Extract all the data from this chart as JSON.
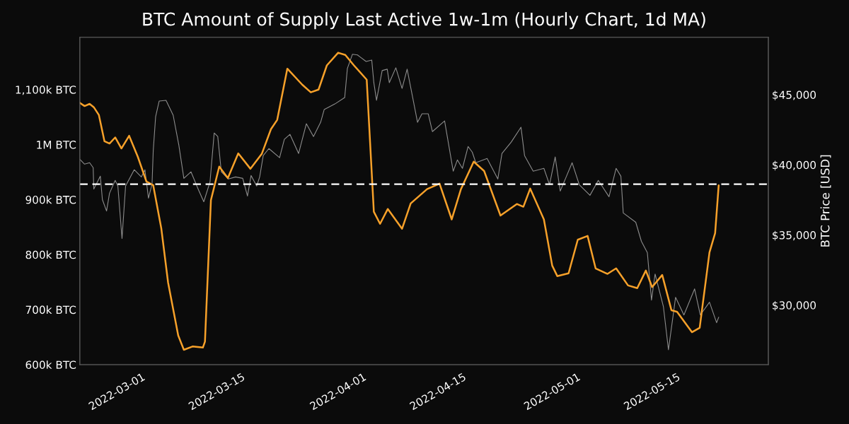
{
  "chart_data": {
    "type": "line",
    "title": "BTC Amount of Supply Last Active 1w-1m (Hourly Chart, 1d MA)",
    "y2label": "BTC Price [USD]",
    "xlim": [
      "2022-02-19T14:00",
      "2022-05-27T02:00"
    ],
    "xticks": [
      "2022-03-01",
      "2022-03-15",
      "2022-04-01",
      "2022-04-15",
      "2022-05-01",
      "2022-05-15"
    ],
    "ylim": [
      600000,
      1195000
    ],
    "yticks": [
      {
        "value": 600000,
        "label": "600k BTC"
      },
      {
        "value": 700000,
        "label": "700k BTC"
      },
      {
        "value": 800000,
        "label": "800k BTC"
      },
      {
        "value": 900000,
        "label": "900k BTC"
      },
      {
        "value": 1000000,
        "label": "1M BTC"
      },
      {
        "value": 1100000,
        "label": "1,100k BTC"
      }
    ],
    "y2lim": [
      25760,
      49090
    ],
    "y2ticks": [
      {
        "value": 30000,
        "label": "$30,000"
      },
      {
        "value": 35000,
        "label": "$35,000"
      },
      {
        "value": 40000,
        "label": "$40,000"
      },
      {
        "value": 45000,
        "label": "$45,000"
      }
    ],
    "grid": false,
    "legend": false,
    "series": [
      {
        "axis": "y2",
        "color": "#8c8c8c",
        "x": [
          "2022-02-19T14:00",
          "2022-02-20T06:00",
          "2022-02-20T23:00",
          "2022-02-21T11:00",
          "2022-02-21T13:00",
          "2022-02-22T11:00",
          "2022-02-22T18:00",
          "2022-02-23T08:00",
          "2022-02-23T18:00",
          "2022-02-24T13:00",
          "2022-02-24T22:00",
          "2022-02-25T12:00",
          "2022-02-26T00:00",
          "2022-02-27T05:00",
          "2022-02-28T05:00",
          "2022-02-28T17:00",
          "2022-03-01T05:00",
          "2022-03-01T17:00",
          "2022-03-01T21:00",
          "2022-03-02T05:00",
          "2022-03-02T17:00",
          "2022-03-03T16:00",
          "2022-03-04T16:00",
          "2022-03-05T11:00",
          "2022-03-06T04:00",
          "2022-03-07T04:00",
          "2022-03-08T04:00",
          "2022-03-08T23:00",
          "2022-03-09T20:00",
          "2022-03-10T10:00",
          "2022-03-10T22:00",
          "2022-03-11T10:00",
          "2022-03-12T10:00",
          "2022-03-13T10:00",
          "2022-03-14T10:00",
          "2022-03-15T02:00",
          "2022-03-15T14:00",
          "2022-03-16T09:00",
          "2022-03-16T19:00",
          "2022-03-17T07:00",
          "2022-03-18T02:00",
          "2022-03-19T14:00",
          "2022-03-20T06:00",
          "2022-03-21T01:00",
          "2022-03-22T06:00",
          "2022-03-23T08:00",
          "2022-03-24T08:00",
          "2022-03-25T08:00",
          "2022-03-25T20:00",
          "2022-03-27T08:00",
          "2022-03-28T17:00",
          "2022-03-29T02:00",
          "2022-03-29T19:00",
          "2022-03-30T12:00",
          "2022-03-31T17:00",
          "2022-04-01T12:00",
          "2022-04-01T19:00",
          "2022-04-02T04:00",
          "2022-04-02T23:00",
          "2022-04-03T16:00",
          "2022-04-03T23:00",
          "2022-04-04T21:00",
          "2022-04-05T18:00",
          "2022-04-06T11:00",
          "2022-04-07T22:00",
          "2022-04-08T13:00",
          "2022-04-09T10:00",
          "2022-04-10T00:00",
          "2022-04-11T17:00",
          "2022-04-12T22:00",
          "2022-04-13T12:00",
          "2022-04-14T05:00",
          "2022-04-15T00:00",
          "2022-04-15T14:00",
          "2022-04-16T02:00",
          "2022-04-17T16:00",
          "2022-04-19T04:00",
          "2022-04-19T18:00",
          "2022-04-21T01:00",
          "2022-04-22T10:00",
          "2022-04-22T22:00",
          "2022-04-24T03:00",
          "2022-04-25T15:00",
          "2022-04-26T10:00",
          "2022-04-27T05:00",
          "2022-04-27T22:00",
          "2022-04-28T17:00",
          "2022-04-29T14:00",
          "2022-04-30T14:00",
          "2022-05-02T02:00",
          "2022-05-03T06:00",
          "2022-05-04T18:00",
          "2022-05-05T18:00",
          "2022-05-06T10:00",
          "2022-05-06T18:00",
          "2022-05-08T12:00",
          "2022-05-09T07:00",
          "2022-05-10T03:00",
          "2022-05-10T17:00",
          "2022-05-11T05:00",
          "2022-05-12T09:00",
          "2022-05-13T02:00",
          "2022-05-14T02:00",
          "2022-05-15T06:00",
          "2022-05-16T18:00",
          "2022-05-17T13:00",
          "2022-05-18T20:00",
          "2022-05-19T20:00",
          "2022-05-20T03:00"
        ],
        "values": [
          40400,
          40050,
          40150,
          39800,
          38280,
          39190,
          37520,
          36710,
          37980,
          38890,
          38490,
          34750,
          38490,
          39650,
          39140,
          39650,
          37630,
          38640,
          41010,
          43430,
          44550,
          44600,
          43540,
          41420,
          39040,
          39500,
          38280,
          37370,
          38790,
          42270,
          42020,
          39500,
          38990,
          39140,
          39040,
          37780,
          39240,
          38490,
          39140,
          40660,
          41160,
          40510,
          41820,
          42170,
          40810,
          42930,
          42020,
          43030,
          43940,
          44340,
          44800,
          46870,
          47880,
          47830,
          47370,
          47470,
          45860,
          44600,
          46720,
          46820,
          45860,
          46920,
          45450,
          46820,
          43030,
          43640,
          43640,
          42370,
          43130,
          39550,
          40350,
          39750,
          41310,
          40910,
          40150,
          40450,
          38990,
          40810,
          41620,
          42680,
          40660,
          39550,
          39750,
          38590,
          40560,
          38130,
          39090,
          40150,
          38590,
          37830,
          38890,
          37730,
          39750,
          39190,
          36570,
          35910,
          34550,
          33740,
          30360,
          32220,
          29900,
          26820,
          30560,
          29300,
          31160,
          29300,
          30210,
          28750,
          29140
        ]
      },
      {
        "color": "#f7a12a",
        "x": [
          "2022-02-19T14:00",
          "2022-02-20T06:00",
          "2022-02-20T23:00",
          "2022-02-21T13:00",
          "2022-02-22T06:00",
          "2022-02-23T01:00",
          "2022-02-23T18:00",
          "2022-02-24T13:00",
          "2022-02-25T10:00",
          "2022-02-26T12:00",
          "2022-02-27T17:00",
          "2022-02-28T22:00",
          "2022-03-01T21:00",
          "2022-03-03T00:00",
          "2022-03-03T23:00",
          "2022-03-05T09:00",
          "2022-03-06T04:00",
          "2022-03-07T09:00",
          "2022-03-08T20:00",
          "2022-03-09T03:00",
          "2022-03-09T23:00",
          "2022-03-11T03:00",
          "2022-03-12T08:00",
          "2022-03-13T19:00",
          "2022-03-15T12:00",
          "2022-03-17T02:00",
          "2022-03-18T09:00",
          "2022-03-19T06:00",
          "2022-03-20T16:00",
          "2022-03-22T18:00",
          "2022-03-23T23:00",
          "2022-03-25T01:00",
          "2022-03-26T05:00",
          "2022-03-27T19:00",
          "2022-03-28T19:00",
          "2022-03-30T00:00",
          "2022-03-31T19:00",
          "2022-04-01T19:00",
          "2022-04-02T16:00",
          "2022-04-03T18:00",
          "2022-04-05T18:00",
          "2022-04-06T23:00",
          "2022-04-09T06:00",
          "2022-04-11T00:00",
          "2022-04-12T17:00",
          "2022-04-14T00:00",
          "2022-04-15T19:00",
          "2022-04-17T06:00",
          "2022-04-19T13:00",
          "2022-04-21T20:00",
          "2022-04-22T18:00",
          "2022-04-23T17:00",
          "2022-04-25T15:00",
          "2022-04-26T19:00",
          "2022-04-27T12:00",
          "2022-04-29T02:00",
          "2022-04-30T09:00",
          "2022-05-01T18:00",
          "2022-05-02T21:00",
          "2022-05-04T13:00",
          "2022-05-05T18:00",
          "2022-05-07T10:00",
          "2022-05-08T17:00",
          "2022-05-09T22:00",
          "2022-05-10T19:00",
          "2022-05-12T05:00",
          "2022-05-13T12:00",
          "2022-05-14T07:00",
          "2022-05-16T09:00",
          "2022-05-17T11:00",
          "2022-05-18T20:00",
          "2022-05-19T15:00",
          "2022-05-20T03:00"
        ],
        "values": [
          1076000,
          1070000,
          1074000,
          1068000,
          1054000,
          1006000,
          1002000,
          1013000,
          993000,
          1016000,
          978000,
          933000,
          926000,
          848000,
          749000,
          653000,
          627000,
          633000,
          631000,
          642000,
          899000,
          960000,
          939000,
          984000,
          956000,
          983000,
          1028000,
          1045000,
          1138000,
          1109000,
          1095000,
          1100000,
          1144000,
          1167000,
          1163000,
          1144000,
          1118000,
          878000,
          856000,
          883000,
          847000,
          893000,
          919000,
          929000,
          864000,
          919000,
          969000,
          952000,
          871000,
          892000,
          887000,
          920000,
          864000,
          780000,
          761000,
          766000,
          827000,
          834000,
          775000,
          765000,
          775000,
          744000,
          739000,
          771000,
          741000,
          763000,
          699000,
          696000,
          659000,
          667000,
          804000,
          839000,
          926000
        ]
      }
    ],
    "ref_lines": [
      {
        "axis": "y",
        "value": 928000,
        "color": "#ffffff",
        "line_style": "dashed"
      }
    ]
  }
}
